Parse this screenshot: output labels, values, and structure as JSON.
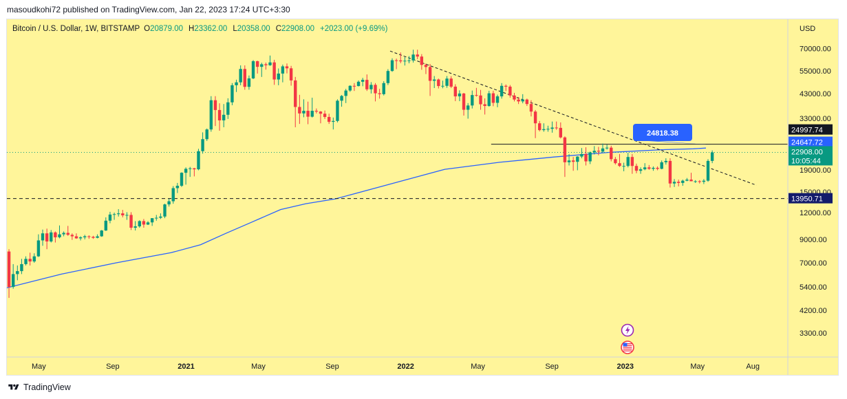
{
  "publisher_line": "masoudkohi72 published on TradingView.com, Jan 22, 2023 17:24 UTC+3:30",
  "footer": {
    "brand": "TradingView"
  },
  "legend": {
    "symbol": "Bitcoin / U.S. Dollar, 1W, BITSTAMP",
    "open_label": "O",
    "open": "20879.00",
    "high_label": "H",
    "high": "23362.00",
    "low_label": "L",
    "low": "20358.00",
    "close_label": "C",
    "close": "22908.00",
    "change": "+2023.00 (+9.69%)"
  },
  "colors": {
    "background": "#fff59a",
    "up": "#089981",
    "down": "#f23645",
    "ma": "#2962ff",
    "callout": "#2962ff",
    "navy": "#131b6b",
    "black": "#131722"
  },
  "chart_data": {
    "type": "candlestick",
    "title": "Bitcoin / U.S. Dollar, 1W, BITSTAMP",
    "currency": "USD",
    "scale": "log",
    "ylim": [
      2800,
      85000
    ],
    "time_range": [
      "2020-03-09",
      "2023-09-11"
    ],
    "y_tick_labels": [
      "70000.00",
      "55000.00",
      "43000.00",
      "33000.00",
      "19000.00",
      "15000.00",
      "12000.00",
      "9000.00",
      "7000.00",
      "5400.00",
      "4200.00",
      "3300.00"
    ],
    "y_ticks": [
      70000,
      55000,
      43000,
      33000,
      19000,
      15000,
      12000,
      9000,
      7000,
      5400,
      4200,
      3300
    ],
    "x_ticks": [
      {
        "date": "2020-05-01",
        "label": "May",
        "bold": false
      },
      {
        "date": "2020-09-01",
        "label": "Sep",
        "bold": false
      },
      {
        "date": "2021-01-01",
        "label": "2021",
        "bold": true
      },
      {
        "date": "2021-05-01",
        "label": "May",
        "bold": false
      },
      {
        "date": "2021-09-01",
        "label": "Sep",
        "bold": false
      },
      {
        "date": "2022-01-01",
        "label": "2022",
        "bold": true
      },
      {
        "date": "2022-05-01",
        "label": "May",
        "bold": false
      },
      {
        "date": "2022-09-01",
        "label": "Sep",
        "bold": false
      },
      {
        "date": "2023-01-01",
        "label": "2023",
        "bold": true
      },
      {
        "date": "2023-05-01",
        "label": "May",
        "bold": false
      },
      {
        "date": "2023-08-01",
        "label": "Aug",
        "bold": false
      }
    ],
    "first_week": "2020-03-09",
    "candles_ohlc": [
      [
        7900,
        8100,
        4800,
        5400
      ],
      [
        5400,
        6900,
        5300,
        6200
      ],
      [
        6200,
        6800,
        5800,
        6400
      ],
      [
        6400,
        7300,
        6200,
        6900
      ],
      [
        6900,
        7500,
        6800,
        7300
      ],
      [
        7300,
        7800,
        6800,
        7100
      ],
      [
        7100,
        7750,
        7000,
        7500
      ],
      [
        7500,
        9500,
        7450,
        8900
      ],
      [
        8900,
        10000,
        8400,
        9600
      ],
      [
        9600,
        10100,
        8100,
        8800
      ],
      [
        8800,
        9950,
        8700,
        9700
      ],
      [
        9700,
        9800,
        8700,
        9200
      ],
      [
        9200,
        10450,
        9100,
        9500
      ],
      [
        9500,
        9800,
        9300,
        9650
      ],
      [
        9650,
        10400,
        9350,
        9450
      ],
      [
        9450,
        9600,
        8950,
        9300
      ],
      [
        9300,
        9600,
        9050,
        9100
      ],
      [
        9100,
        9300,
        8900,
        9200
      ],
      [
        9200,
        9450,
        9000,
        9300
      ],
      [
        9300,
        9400,
        9050,
        9250
      ],
      [
        9250,
        9350,
        9050,
        9150
      ],
      [
        9150,
        9500,
        9100,
        9300
      ],
      [
        9300,
        9950,
        9250,
        9900
      ],
      [
        9900,
        11400,
        9850,
        11000
      ],
      [
        11000,
        12100,
        10700,
        11750
      ],
      [
        11750,
        12000,
        11100,
        11800
      ],
      [
        11800,
        12450,
        11500,
        11900
      ],
      [
        11900,
        12350,
        11400,
        11650
      ],
      [
        11650,
        12050,
        11100,
        11700
      ],
      [
        11700,
        12050,
        9950,
        10200
      ],
      [
        10200,
        10950,
        9900,
        10350
      ],
      [
        10350,
        11050,
        10200,
        10950
      ],
      [
        10950,
        11200,
        10200,
        10550
      ],
      [
        10550,
        10950,
        10500,
        10800
      ],
      [
        10800,
        11300,
        10400,
        11300
      ],
      [
        11300,
        11700,
        11000,
        11350
      ],
      [
        11350,
        11900,
        11200,
        11500
      ],
      [
        11500,
        13200,
        11300,
        13100
      ],
      [
        13100,
        13900,
        12800,
        13550
      ],
      [
        13550,
        15950,
        13200,
        15600
      ],
      [
        15600,
        16500,
        14800,
        16000
      ],
      [
        16000,
        18500,
        15800,
        18400
      ],
      [
        18400,
        19500,
        16200,
        19200
      ],
      [
        19200,
        19600,
        17600,
        19300
      ],
      [
        19300,
        19400,
        17700,
        19100
      ],
      [
        19100,
        23800,
        18900,
        23200
      ],
      [
        23200,
        28400,
        22600,
        26400
      ],
      [
        26400,
        29600,
        25900,
        29300
      ],
      [
        29300,
        41900,
        28600,
        40100
      ],
      [
        40100,
        41900,
        30400,
        36100
      ],
      [
        36100,
        38800,
        28900,
        32300
      ],
      [
        32300,
        38500,
        30000,
        34300
      ],
      [
        34300,
        40950,
        32800,
        39200
      ],
      [
        39200,
        48200,
        38000,
        47100
      ],
      [
        47100,
        50000,
        43800,
        48600
      ],
      [
        48600,
        58300,
        47100,
        56100
      ],
      [
        56100,
        58300,
        44900,
        46300
      ],
      [
        46300,
        52300,
        44900,
        50700
      ],
      [
        50700,
        61700,
        50300,
        61000
      ],
      [
        61000,
        61300,
        53400,
        57400
      ],
      [
        57400,
        60000,
        51500,
        59000
      ],
      [
        59000,
        60100,
        55700,
        58400
      ],
      [
        58400,
        64800,
        58000,
        60200
      ],
      [
        60200,
        61900,
        47300,
        50100
      ],
      [
        50100,
        56400,
        47100,
        53400
      ],
      [
        53400,
        58800,
        48600,
        57700
      ],
      [
        57700,
        59500,
        53500,
        56500
      ],
      [
        56500,
        58000,
        46900,
        49600
      ],
      [
        49600,
        51500,
        30000,
        37300
      ],
      [
        37300,
        42500,
        31100,
        34800
      ],
      [
        34800,
        40500,
        33400,
        35800
      ],
      [
        35800,
        39500,
        31000,
        33600
      ],
      [
        33600,
        41200,
        33300,
        35800
      ],
      [
        35800,
        36700,
        34800,
        35500
      ],
      [
        35500,
        35700,
        31300,
        34700
      ],
      [
        34700,
        35900,
        32800,
        33500
      ],
      [
        33500,
        34700,
        31100,
        31800
      ],
      [
        31800,
        33300,
        29300,
        32100
      ],
      [
        32100,
        40500,
        31600,
        39900
      ],
      [
        39900,
        42400,
        37400,
        42000
      ],
      [
        42000,
        45300,
        38900,
        44500
      ],
      [
        44500,
        47100,
        43900,
        46800
      ],
      [
        46800,
        48200,
        44300,
        46700
      ],
      [
        46700,
        49600,
        46500,
        48900
      ],
      [
        48900,
        51000,
        46600,
        49900
      ],
      [
        49900,
        52900,
        44300,
        45100
      ],
      [
        45100,
        48700,
        43100,
        47300
      ],
      [
        47300,
        48200,
        39600,
        43200
      ],
      [
        43200,
        45300,
        40800,
        42800
      ],
      [
        42800,
        49200,
        42200,
        48200
      ],
      [
        48200,
        56000,
        47200,
        54900
      ],
      [
        54900,
        62900,
        54400,
        61600
      ],
      [
        61600,
        62700,
        56000,
        61500
      ],
      [
        61500,
        67000,
        59700,
        60900
      ],
      [
        60900,
        63700,
        58200,
        61300
      ],
      [
        61300,
        64400,
        59600,
        61500
      ],
      [
        61500,
        69000,
        60100,
        65500
      ],
      [
        65500,
        69000,
        62300,
        64100
      ],
      [
        64100,
        65800,
        55600,
        58600
      ],
      [
        58600,
        59500,
        53100,
        57300
      ],
      [
        57300,
        59200,
        42000,
        49400
      ],
      [
        49400,
        52000,
        45700,
        50100
      ],
      [
        50100,
        50600,
        45500,
        46700
      ],
      [
        46700,
        49500,
        45600,
        46800
      ],
      [
        46800,
        52000,
        45800,
        50600
      ],
      [
        50600,
        51900,
        45700,
        46400
      ],
      [
        46400,
        47600,
        39700,
        41800
      ],
      [
        41800,
        44600,
        39700,
        43100
      ],
      [
        43100,
        43400,
        34000,
        36200
      ],
      [
        36200,
        38900,
        32900,
        37900
      ],
      [
        37900,
        44500,
        36700,
        42400
      ],
      [
        42400,
        45800,
        41700,
        42200
      ],
      [
        42200,
        44800,
        36200,
        38400
      ],
      [
        38400,
        40900,
        34400,
        37700
      ],
      [
        37700,
        44400,
        37400,
        43200
      ],
      [
        43200,
        44400,
        37600,
        39000
      ],
      [
        39000,
        42600,
        37200,
        41800
      ],
      [
        41800,
        48200,
        40800,
        46800
      ],
      [
        46800,
        47500,
        44300,
        46400
      ],
      [
        46400,
        47200,
        41200,
        42200
      ],
      [
        42200,
        43400,
        39600,
        40400
      ],
      [
        40400,
        41500,
        38500,
        39600
      ],
      [
        39600,
        42800,
        38800,
        40400
      ],
      [
        40400,
        40800,
        37700,
        38500
      ],
      [
        38500,
        40100,
        33700,
        35500
      ],
      [
        35500,
        36100,
        26700,
        31300
      ],
      [
        31300,
        32100,
        28700,
        29100
      ],
      [
        29100,
        31300,
        28600,
        29400
      ],
      [
        29400,
        30500,
        28600,
        29500
      ],
      [
        29500,
        31900,
        28300,
        29900
      ],
      [
        29900,
        31900,
        29200,
        29800
      ],
      [
        29800,
        31600,
        26600,
        26900
      ],
      [
        26900,
        27200,
        17600,
        20600
      ],
      [
        20600,
        22500,
        19900,
        21000
      ],
      [
        21000,
        21800,
        18800,
        20700
      ],
      [
        20700,
        22000,
        18900,
        21900
      ],
      [
        21900,
        24000,
        21500,
        22500
      ],
      [
        22500,
        24200,
        19900,
        20800
      ],
      [
        20800,
        23100,
        20200,
        22900
      ],
      [
        22900,
        24500,
        22400,
        23300
      ],
      [
        23300,
        24300,
        22200,
        23100
      ],
      [
        23100,
        25200,
        22800,
        23900
      ],
      [
        23900,
        24900,
        23600,
        24100
      ],
      [
        24100,
        24600,
        20800,
        21300
      ],
      [
        21300,
        21800,
        20100,
        20400
      ],
      [
        20400,
        22500,
        19600,
        19800
      ],
      [
        19800,
        20500,
        18700,
        19800
      ],
      [
        19800,
        22800,
        19500,
        21800
      ],
      [
        21800,
        22500,
        18200,
        19800
      ],
      [
        19800,
        20300,
        18300,
        18800
      ],
      [
        18800,
        19500,
        18200,
        19100
      ],
      [
        19100,
        20400,
        18900,
        19500
      ],
      [
        19500,
        20000,
        19000,
        19200
      ],
      [
        19200,
        19700,
        18800,
        19400
      ],
      [
        19400,
        19700,
        18900,
        19200
      ],
      [
        19200,
        21000,
        19100,
        20600
      ],
      [
        20600,
        21500,
        20100,
        20900
      ],
      [
        20900,
        21500,
        15700,
        16400
      ],
      [
        16400,
        17200,
        15800,
        16700
      ],
      [
        16700,
        17100,
        15900,
        16500
      ],
      [
        16500,
        17100,
        16000,
        16900
      ],
      [
        16900,
        17400,
        16800,
        17100
      ],
      [
        17100,
        18400,
        16800,
        16800
      ],
      [
        16800,
        17000,
        16500,
        16800
      ],
      [
        16800,
        17000,
        16400,
        16700
      ],
      [
        16700,
        17200,
        16300,
        16900
      ],
      [
        16900,
        21300,
        16700,
        20900
      ],
      [
        20900,
        23400,
        20400,
        22908
      ]
    ],
    "ma200_approx_points": [
      [
        0,
        5350
      ],
      [
        13,
        6200
      ],
      [
        26,
        7000
      ],
      [
        39,
        7800
      ],
      [
        46,
        8500
      ],
      [
        52,
        9600
      ],
      [
        58,
        10800
      ],
      [
        65,
        12400
      ],
      [
        71,
        13200
      ],
      [
        78,
        13900
      ],
      [
        91,
        16300
      ],
      [
        104,
        19100
      ],
      [
        117,
        20600
      ],
      [
        130,
        21800
      ],
      [
        143,
        22900
      ],
      [
        156,
        23600
      ],
      [
        163,
        23800
      ],
      [
        166,
        24000
      ]
    ],
    "price_level_lines": [
      {
        "label": "24997.74",
        "value": 24997.74,
        "style": "solid"
      },
      {
        "label": "13950.71",
        "value": 13950.71,
        "style": "dashed"
      }
    ],
    "downtrend_line": {
      "from": [
        91,
        68000
      ],
      "to": [
        178,
        16100
      ]
    },
    "price_badges": [
      {
        "label": "24997.74",
        "value": 24997.74
      },
      {
        "label": "24647.72",
        "value": 24647.72
      },
      {
        "label": "22908.00",
        "value": 22908.0,
        "countdown": "10:05:44"
      },
      {
        "label": "13950.71",
        "value": 13950.71
      }
    ],
    "callout": {
      "label": "24818.38",
      "value": 24818.38
    }
  }
}
